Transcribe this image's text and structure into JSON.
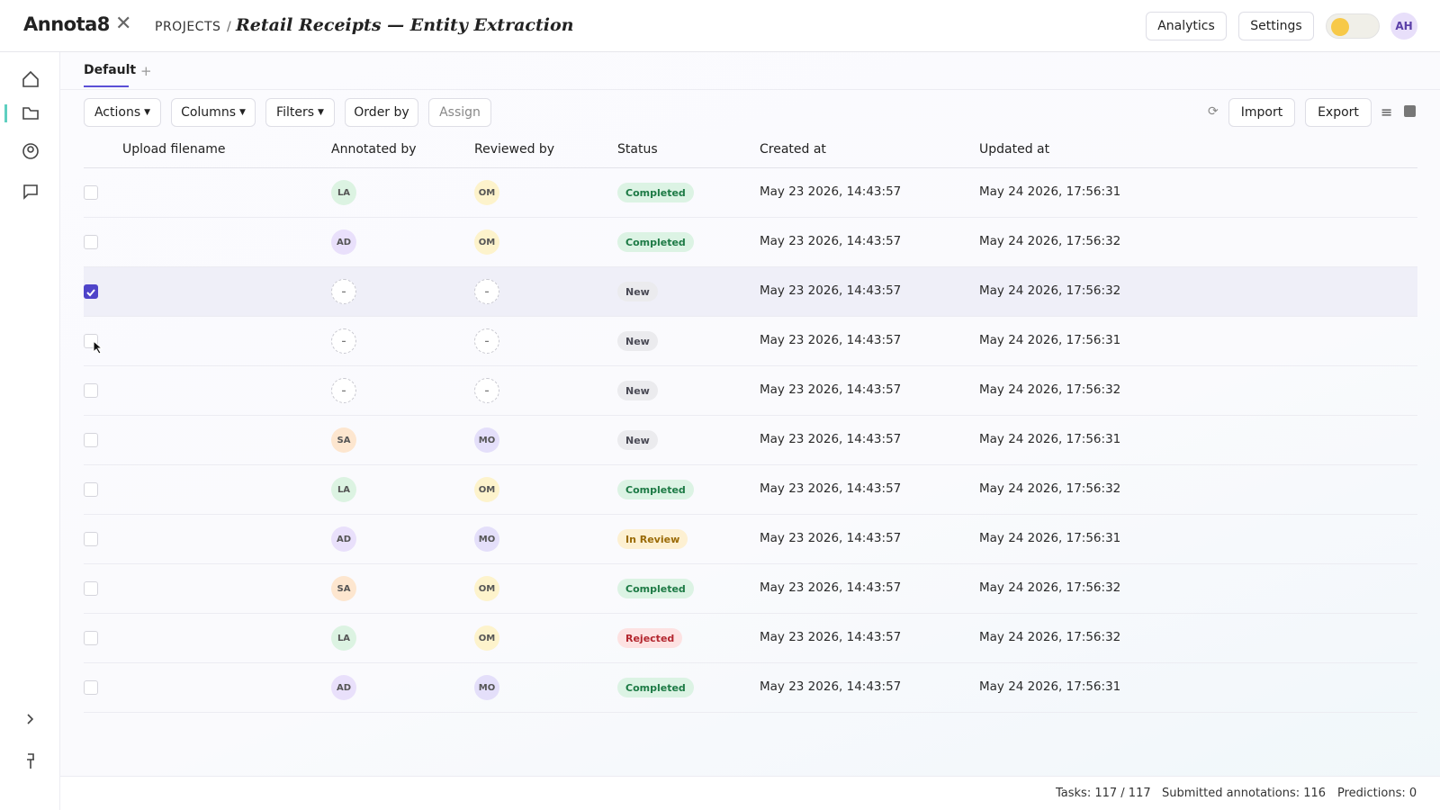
{
  "header": {
    "logo": "Annota8",
    "breadcrumb": "PROJECTS",
    "separator": "/",
    "project": "Retail Receipts — Entity Extraction",
    "buttons": [
      "Analytics",
      "Settings"
    ],
    "avatar": "AH"
  },
  "tabs": {
    "items": [
      "Default"
    ],
    "add": "+"
  },
  "toolbar": {
    "left": [
      "Actions",
      "Columns",
      "Filters",
      "Order by",
      "Assign"
    ],
    "right": [
      "Import",
      "Export"
    ]
  },
  "table": {
    "columns": [
      "Upload filename",
      "Annotated by",
      "Reviewed by",
      "Status",
      "Created at",
      "Updated at"
    ],
    "avatar_colors": {
      "LA": "#dcf3e2",
      "AD": "#e9e0fb",
      "OM": "#fdf3cc",
      "SA": "#fde6cf",
      "MO": "#e4dffa"
    },
    "status_colors": {
      "Completed": [
        "#dcf3e4",
        "#1d7a45"
      ],
      "New": [
        "#ebebee",
        "#4a4a55"
      ],
      "In Review": [
        "#fdf0d2",
        "#9a6a06"
      ],
      "Rejected": [
        "#fde2e2",
        "#b3262e"
      ]
    },
    "rows": [
      {
        "checked": false,
        "annotator": "LA",
        "reviewer": "OM",
        "status": "Completed",
        "created": "May 23 2026, 14:43:57",
        "updated": "May 24 2026, 17:56:31"
      },
      {
        "checked": false,
        "annotator": "AD",
        "reviewer": "OM",
        "status": "Completed",
        "created": "May 23 2026, 14:43:57",
        "updated": "May 24 2026, 17:56:32"
      },
      {
        "checked": true,
        "annotator": "–",
        "reviewer": "–",
        "status": "New",
        "created": "May 23 2026, 14:43:57",
        "updated": "May 24 2026, 17:56:32"
      },
      {
        "checked": false,
        "annotator": "–",
        "reviewer": "–",
        "status": "New",
        "created": "May 23 2026, 14:43:57",
        "updated": "May 24 2026, 17:56:31"
      },
      {
        "checked": false,
        "annotator": "–",
        "reviewer": "–",
        "status": "New",
        "created": "May 23 2026, 14:43:57",
        "updated": "May 24 2026, 17:56:32"
      },
      {
        "checked": false,
        "annotator": "SA",
        "reviewer": "MO",
        "status": "New",
        "created": "May 23 2026, 14:43:57",
        "updated": "May 24 2026, 17:56:31"
      },
      {
        "checked": false,
        "annotator": "LA",
        "reviewer": "OM",
        "status": "Completed",
        "created": "May 23 2026, 14:43:57",
        "updated": "May 24 2026, 17:56:32"
      },
      {
        "checked": false,
        "annotator": "AD",
        "reviewer": "MO",
        "status": "In Review",
        "created": "May 23 2026, 14:43:57",
        "updated": "May 24 2026, 17:56:31"
      },
      {
        "checked": false,
        "annotator": "SA",
        "reviewer": "OM",
        "status": "Completed",
        "created": "May 23 2026, 14:43:57",
        "updated": "May 24 2026, 17:56:32"
      },
      {
        "checked": false,
        "annotator": "LA",
        "reviewer": "OM",
        "status": "Rejected",
        "created": "May 23 2026, 14:43:57",
        "updated": "May 24 2026, 17:56:32"
      },
      {
        "checked": false,
        "annotator": "AD",
        "reviewer": "MO",
        "status": "Completed",
        "created": "May 23 2026, 14:43:57",
        "updated": "May 24 2026, 17:56:31"
      }
    ]
  },
  "footer": {
    "tasks": "Tasks: 117 / 117",
    "submitted": "Submitted annotations: 116",
    "predictions": "Predictions: 0"
  }
}
